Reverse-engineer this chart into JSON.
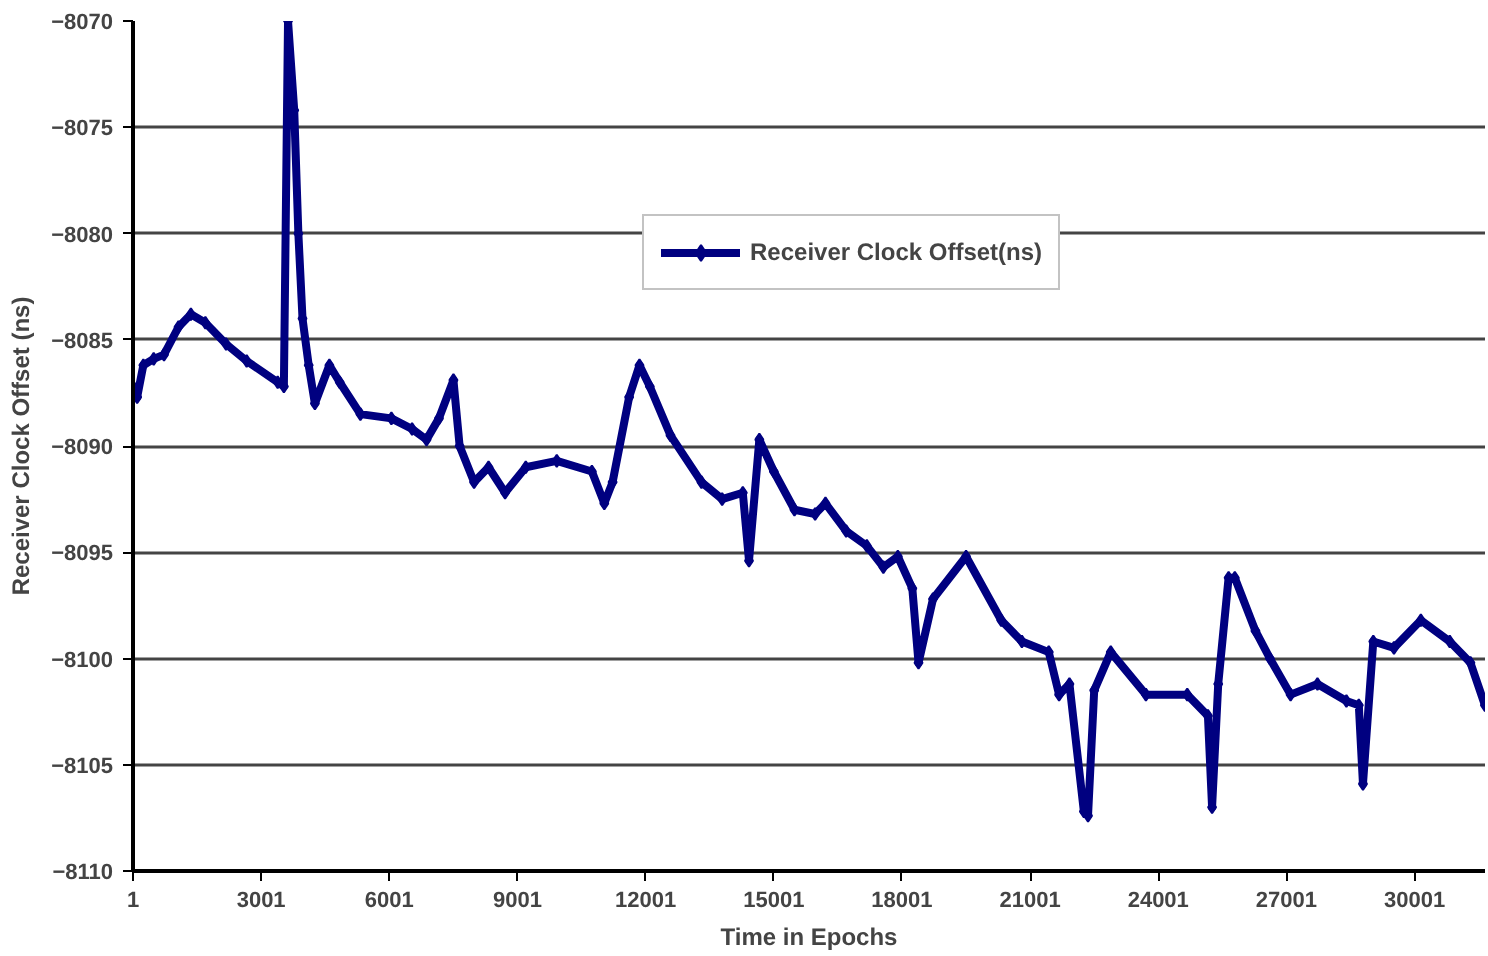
{
  "chart_data": {
    "type": "line",
    "xlabel": "Time in Epochs",
    "ylabel": "Receiver Clock Offset (ns)",
    "xlim": [
      1,
      31650
    ],
    "ylim": [
      -8110,
      -8070
    ],
    "xticks": [
      1,
      3001,
      6001,
      9001,
      12001,
      15001,
      18001,
      21001,
      24001,
      27001,
      30001
    ],
    "yticks": [
      -8110,
      -8105,
      -8100,
      -8095,
      -8090,
      -8085,
      -8080,
      -8075,
      -8070
    ],
    "grid": "y",
    "legend": "top right",
    "marker": "diamond",
    "line_style": "solid",
    "series": [
      {
        "name": "Receiver Clock Offset(ns)",
        "color": "#000080",
        "x": [
          1,
          98,
          243,
          485,
          727,
          1066,
          1356,
          1695,
          2179,
          2662,
          3388,
          3533,
          3630,
          3775,
          3872,
          3969,
          4114,
          4259,
          4598,
          4840,
          5324,
          6050,
          6534,
          6872,
          7163,
          7502,
          7647,
          7985,
          8324,
          8711,
          9195,
          9921,
          10743,
          11034,
          11228,
          11615,
          11857,
          12099,
          12583,
          13308,
          13792,
          14276,
          14421,
          14663,
          15002,
          15485,
          15969,
          16211,
          16695,
          17179,
          17566,
          17905,
          18244,
          18389,
          18728,
          19502,
          20325,
          20809,
          21438,
          21680,
          21922,
          22260,
          22357,
          22502,
          22889,
          23712,
          24680,
          25164,
          25261,
          25405,
          25648,
          25793,
          26276,
          26615,
          27099,
          27728,
          28406,
          28696,
          28793,
          29035,
          29519,
          30148,
          30825,
          31309,
          31648
        ],
        "values": [
          -8087.2,
          -8087.7,
          -8086.2,
          -8085.9,
          -8085.7,
          -8084.4,
          -8083.8,
          -8084.2,
          -8085.2,
          -8086,
          -8087,
          -8087.2,
          -8070,
          -8074.2,
          -8080,
          -8084,
          -8086.2,
          -8088,
          -8086.2,
          -8087,
          -8088.5,
          -8088.7,
          -8089.2,
          -8089.7,
          -8088.7,
          -8086.9,
          -8090,
          -8091.7,
          -8091,
          -8092.2,
          -8091,
          -8090.7,
          -8091.2,
          -8092.7,
          -8091.7,
          -8087.7,
          -8086.2,
          -8087.2,
          -8089.5,
          -8091.7,
          -8092.5,
          -8092.2,
          -8095.4,
          -8089.7,
          -8091.2,
          -8093,
          -8093.2,
          -8092.7,
          -8094,
          -8094.7,
          -8095.7,
          -8095.2,
          -8096.7,
          -8100.2,
          -8097.2,
          -8095.2,
          -8098.2,
          -8099.2,
          -8099.7,
          -8101.7,
          -8101.2,
          -8107.2,
          -8107.4,
          -8101.5,
          -8099.7,
          -8101.7,
          -8101.7,
          -8102.7,
          -8107,
          -8101.2,
          -8096.2,
          -8096.2,
          -8098.7,
          -8100,
          -8101.7,
          -8101.2,
          -8102,
          -8102.2,
          -8105.9,
          -8099.2,
          -8099.5,
          -8098.2,
          -8099.2,
          -8100.2,
          -8102.2
        ]
      }
    ]
  }
}
